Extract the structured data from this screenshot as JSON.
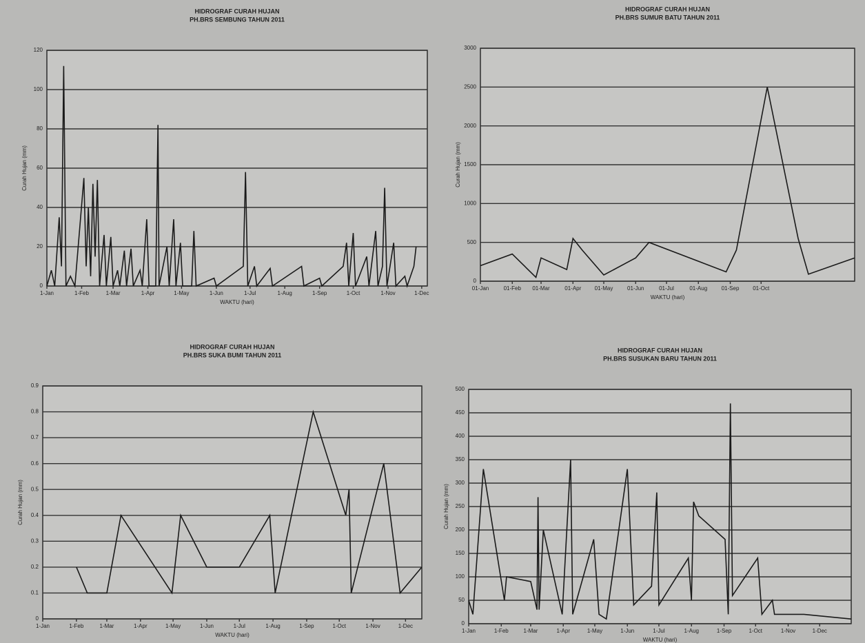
{
  "chart_data": [
    {
      "type": "line",
      "title": "HIDROGRAF CURAH HUJAN",
      "subtitle": "PH.BRS SEMBUNG TAHUN 2011",
      "xlabel": "WAKTU (hari)",
      "ylabel": "Curah Hujan (mm)",
      "color": "#1a1a1a",
      "x": [
        1,
        5,
        8,
        12,
        14,
        16,
        18,
        22,
        26,
        34,
        36,
        38,
        40,
        42,
        44,
        46,
        48,
        52,
        54,
        58,
        60,
        64,
        66,
        70,
        72,
        76,
        78,
        84,
        86,
        90,
        92,
        98,
        100,
        101,
        108,
        110,
        114,
        116,
        120,
        122,
        130,
        132,
        134,
        150,
        152,
        176,
        178,
        180,
        186,
        188,
        200,
        202,
        228,
        230,
        244,
        246,
        265,
        268,
        270,
        274,
        276,
        286,
        288,
        294,
        296,
        300,
        302,
        304,
        310,
        312,
        320,
        322,
        328,
        330
      ],
      "values": [
        0,
        8,
        0,
        35,
        10,
        112,
        0,
        5,
        0,
        55,
        10,
        40,
        5,
        52,
        15,
        54,
        0,
        26,
        0,
        25,
        0,
        8,
        0,
        18,
        0,
        19,
        0,
        8,
        0,
        34,
        0,
        0,
        82,
        0,
        20,
        0,
        34,
        0,
        22,
        0,
        0,
        28,
        0,
        4,
        0,
        10,
        58,
        0,
        10,
        0,
        9,
        0,
        10,
        0,
        4,
        0,
        10,
        22,
        0,
        27,
        0,
        15,
        0,
        28,
        0,
        10,
        50,
        0,
        22,
        0,
        5,
        0,
        10,
        20
      ],
      "xlim": [
        1,
        340
      ],
      "ylim": [
        0,
        120
      ],
      "yticks": [
        0,
        20,
        40,
        60,
        80,
        100,
        120
      ],
      "xticks": [
        {
          "value": 1,
          "label": "1-Jan"
        },
        {
          "value": 32,
          "label": "1-Feb"
        },
        {
          "value": 60,
          "label": "1-Mar"
        },
        {
          "value": 91,
          "label": "1-Apr"
        },
        {
          "value": 121,
          "label": "1-May"
        },
        {
          "value": 152,
          "label": "1-Jun"
        },
        {
          "value": 182,
          "label": "1-Jul"
        },
        {
          "value": 213,
          "label": "1-Aug"
        },
        {
          "value": 244,
          "label": "1-Sep"
        },
        {
          "value": 274,
          "label": "1-Oct"
        },
        {
          "value": 305,
          "label": "1-Nov"
        },
        {
          "value": 335,
          "label": "1-Dec"
        }
      ]
    },
    {
      "type": "line",
      "title": "HIDROGRAF CURAH HUJAN",
      "subtitle": "PH.BRS SUMUR BATU TAHUN 2011",
      "xlabel": "WAKTU (hari)",
      "ylabel": "Curah Hujan (mm)",
      "color": "#1a1a1a",
      "x": [
        1,
        32,
        55,
        60,
        85,
        91,
        100,
        121,
        152,
        165,
        240,
        250,
        280,
        310,
        320,
        365
      ],
      "values": [
        200,
        350,
        50,
        300,
        150,
        550,
        400,
        80,
        300,
        500,
        120,
        400,
        2500,
        550,
        90,
        300
      ],
      "xlim": [
        1,
        365
      ],
      "ylim": [
        0,
        3000
      ],
      "yticks": [
        0,
        500,
        1000,
        1500,
        2000,
        2500,
        3000
      ],
      "xticks": [
        {
          "value": 1,
          "label": "01-Jan"
        },
        {
          "value": 32,
          "label": "01-Feb"
        },
        {
          "value": 60,
          "label": "01-Mar"
        },
        {
          "value": 91,
          "label": "01-Apr"
        },
        {
          "value": 121,
          "label": "01-May"
        },
        {
          "value": 152,
          "label": "01-Jun"
        },
        {
          "value": 182,
          "label": "01-Jul"
        },
        {
          "value": 213,
          "label": "01-Aug"
        },
        {
          "value": 244,
          "label": "01-Sep"
        },
        {
          "value": 274,
          "label": "01-Oct"
        }
      ]
    },
    {
      "type": "line",
      "title": "HIDROGRAF CURAH HUJAN",
      "subtitle": "PH.BRS SUKA BUMI TAHUN 2011",
      "xlabel": "WAKTU (hari)",
      "ylabel": "Curah Hujan (mm)",
      "color": "#1a1a1a",
      "x": [
        32,
        42,
        60,
        73,
        120,
        128,
        152,
        182,
        210,
        215,
        250,
        280,
        283,
        285,
        315,
        330,
        350
      ],
      "values": [
        0.2,
        0.1,
        0.1,
        0.4,
        0.1,
        0.4,
        0.2,
        0.2,
        0.4,
        0.1,
        0.8,
        0.4,
        0.5,
        0.1,
        0.6,
        0.1,
        0.2
      ],
      "xlim": [
        1,
        350
      ],
      "ylim": [
        0,
        0.9
      ],
      "yticks": [
        0,
        0.1,
        0.2,
        0.3,
        0.4,
        0.5,
        0.6,
        0.7,
        0.8,
        0.9
      ],
      "xticks": [
        {
          "value": 1,
          "label": "1-Jan"
        },
        {
          "value": 32,
          "label": "1-Feb"
        },
        {
          "value": 60,
          "label": "1-Mar"
        },
        {
          "value": 91,
          "label": "1-Apr"
        },
        {
          "value": 121,
          "label": "1-May"
        },
        {
          "value": 152,
          "label": "1-Jun"
        },
        {
          "value": 182,
          "label": "1-Jul"
        },
        {
          "value": 213,
          "label": "1-Aug"
        },
        {
          "value": 244,
          "label": "1-Sep"
        },
        {
          "value": 274,
          "label": "1-Oct"
        },
        {
          "value": 305,
          "label": "1-Nov"
        },
        {
          "value": 335,
          "label": "1-Dec"
        }
      ]
    },
    {
      "type": "line",
      "title": "HIDROGRAF CURAH HUJAN",
      "subtitle": "PH.BRS SUSUKAN BARU TAHUN 2011",
      "xlabel": "WAKTU (hari)",
      "ylabel": "Curah Hujan (mm)",
      "color": "#1a1a1a",
      "x": [
        1,
        5,
        15,
        35,
        37,
        60,
        66,
        67,
        68,
        72,
        90,
        98,
        100,
        120,
        125,
        132,
        152,
        158,
        175,
        180,
        182,
        210,
        213,
        215,
        220,
        245,
        248,
        250,
        252,
        276,
        280,
        290,
        292,
        320,
        365
      ],
      "values": [
        50,
        20,
        330,
        50,
        100,
        90,
        30,
        270,
        30,
        200,
        20,
        350,
        20,
        180,
        20,
        10,
        330,
        40,
        80,
        280,
        40,
        140,
        50,
        260,
        230,
        180,
        20,
        470,
        60,
        140,
        20,
        50,
        20,
        20,
        10
      ],
      "xlim": [
        1,
        365
      ],
      "ylim": [
        0,
        500
      ],
      "yticks": [
        0,
        50,
        100,
        150,
        200,
        250,
        300,
        350,
        400,
        450,
        500
      ],
      "xticks": [
        {
          "value": 1,
          "label": "1-Jan"
        },
        {
          "value": 32,
          "label": "1-Feb"
        },
        {
          "value": 60,
          "label": "1-Mar"
        },
        {
          "value": 91,
          "label": "1-Apr"
        },
        {
          "value": 121,
          "label": "1-May"
        },
        {
          "value": 152,
          "label": "1-Jun"
        },
        {
          "value": 182,
          "label": "1-Jul"
        },
        {
          "value": 213,
          "label": "1-Aug"
        },
        {
          "value": 244,
          "label": "1-Sep"
        },
        {
          "value": 274,
          "label": "1-Oct"
        },
        {
          "value": 305,
          "label": "1-Nov"
        },
        {
          "value": 335,
          "label": "1-Dec"
        }
      ]
    }
  ]
}
